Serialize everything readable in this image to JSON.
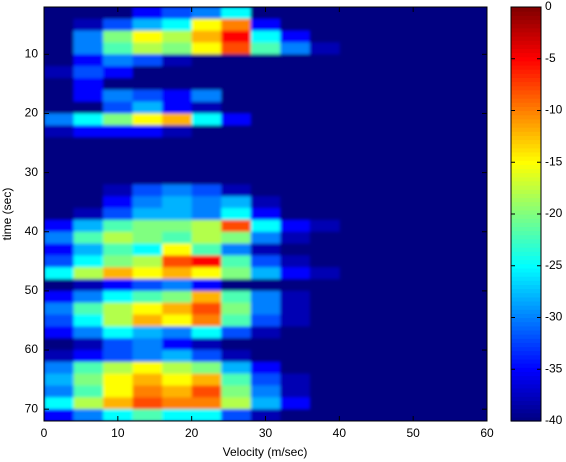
{
  "chart_data": {
    "type": "heatmap",
    "x_label": "Velocity (m/sec)",
    "y_label": "time (sec)",
    "colormap": "jet",
    "y_inverted": true,
    "xlim": [
      0,
      60
    ],
    "ylim": [
      2,
      72
    ],
    "xticks": [
      0,
      10,
      20,
      30,
      40,
      50,
      60
    ],
    "yticks": [
      10,
      20,
      30,
      40,
      50,
      60,
      70
    ],
    "clim": [
      -40,
      0
    ],
    "cticks": [
      0,
      -5,
      -10,
      -15,
      -20,
      -25,
      -30,
      -35,
      -40
    ],
    "x_bins": [
      0,
      4,
      8,
      12,
      16,
      20,
      24,
      28,
      32,
      36,
      40
    ],
    "y_bins": [
      2,
      4,
      6,
      8,
      10,
      12,
      14,
      16,
      18,
      20,
      22,
      24,
      26,
      28,
      30,
      32,
      34,
      36,
      38,
      40,
      42,
      44,
      46,
      48,
      50,
      52,
      54,
      56,
      58,
      60,
      62,
      64,
      66,
      68,
      70,
      72
    ],
    "z": [
      [
        -40,
        -40,
        -40,
        -35,
        -32,
        -30,
        -25,
        -40,
        -40,
        -40
      ],
      [
        -40,
        -38,
        -32,
        -28,
        -25,
        -15,
        -10,
        -35,
        -40,
        -40
      ],
      [
        -40,
        -30,
        -20,
        -15,
        -18,
        -12,
        -5,
        -25,
        -35,
        -40
      ],
      [
        -40,
        -30,
        -22,
        -18,
        -20,
        -15,
        -8,
        -22,
        -30,
        -38
      ],
      [
        -40,
        -35,
        -30,
        -32,
        -38,
        -40,
        -40,
        -40,
        -40,
        -40
      ],
      [
        -38,
        -32,
        -35,
        -40,
        -40,
        -40,
        -40,
        -40,
        -40,
        -40
      ],
      [
        -40,
        -35,
        -40,
        -40,
        -40,
        -40,
        -40,
        -40,
        -40,
        -40
      ],
      [
        -40,
        -35,
        -30,
        -32,
        -35,
        -30,
        -40,
        -40,
        -40,
        -40
      ],
      [
        -40,
        -40,
        -32,
        -28,
        -35,
        -38,
        -40,
        -40,
        -40,
        -40
      ],
      [
        -30,
        -25,
        -20,
        -15,
        -12,
        -25,
        -35,
        -40,
        -40,
        -40
      ],
      [
        -38,
        -35,
        -35,
        -35,
        -38,
        -40,
        -40,
        -40,
        -40,
        -40
      ],
      [
        -40,
        -40,
        -40,
        -40,
        -40,
        -40,
        -40,
        -40,
        -40,
        -40
      ],
      [
        -40,
        -40,
        -40,
        -40,
        -40,
        -40,
        -40,
        -40,
        -40,
        -40
      ],
      [
        -40,
        -40,
        -40,
        -40,
        -40,
        -40,
        -40,
        -40,
        -40,
        -40
      ],
      [
        -40,
        -40,
        -40,
        -40,
        -40,
        -40,
        -40,
        -40,
        -40,
        -40
      ],
      [
        -40,
        -40,
        -38,
        -32,
        -30,
        -32,
        -38,
        -40,
        -40,
        -40
      ],
      [
        -40,
        -40,
        -35,
        -30,
        -28,
        -30,
        -28,
        -38,
        -40,
        -40
      ],
      [
        -40,
        -38,
        -32,
        -28,
        -28,
        -30,
        -25,
        -35,
        -40,
        -40
      ],
      [
        -35,
        -28,
        -22,
        -20,
        -20,
        -18,
        -8,
        -25,
        -35,
        -38
      ],
      [
        -30,
        -22,
        -18,
        -20,
        -22,
        -18,
        -20,
        -30,
        -38,
        -40
      ],
      [
        -35,
        -28,
        -22,
        -25,
        -15,
        -22,
        -30,
        -38,
        -40,
        -40
      ],
      [
        -32,
        -25,
        -20,
        -18,
        -8,
        -5,
        -22,
        -32,
        -38,
        -40
      ],
      [
        -25,
        -18,
        -12,
        -15,
        -12,
        -15,
        -20,
        -28,
        -35,
        -38
      ],
      [
        -40,
        -38,
        -35,
        -32,
        -30,
        -35,
        -40,
        -40,
        -40,
        -40
      ],
      [
        -35,
        -30,
        -25,
        -22,
        -20,
        -12,
        -22,
        -30,
        -38,
        -40
      ],
      [
        -30,
        -22,
        -18,
        -15,
        -12,
        -8,
        -20,
        -30,
        -38,
        -40
      ],
      [
        -32,
        -25,
        -18,
        -12,
        -15,
        -10,
        -22,
        -32,
        -38,
        -40
      ],
      [
        -35,
        -30,
        -25,
        -28,
        -30,
        -25,
        -32,
        -38,
        -40,
        -40
      ],
      [
        -40,
        -38,
        -32,
        -30,
        -35,
        -38,
        -40,
        -40,
        -40,
        -40
      ],
      [
        -38,
        -35,
        -32,
        -30,
        -28,
        -32,
        -38,
        -40,
        -40,
        -40
      ],
      [
        -30,
        -22,
        -18,
        -15,
        -18,
        -20,
        -28,
        -35,
        -40,
        -40
      ],
      [
        -28,
        -20,
        -15,
        -12,
        -15,
        -12,
        -22,
        -32,
        -38,
        -40
      ],
      [
        -30,
        -22,
        -15,
        -10,
        -12,
        -8,
        -20,
        -30,
        -38,
        -40
      ],
      [
        -25,
        -18,
        -12,
        -8,
        -10,
        -10,
        -18,
        -28,
        -35,
        -40
      ],
      [
        -35,
        -30,
        -25,
        -22,
        -25,
        -25,
        -32,
        -38,
        -40,
        -40
      ]
    ]
  }
}
